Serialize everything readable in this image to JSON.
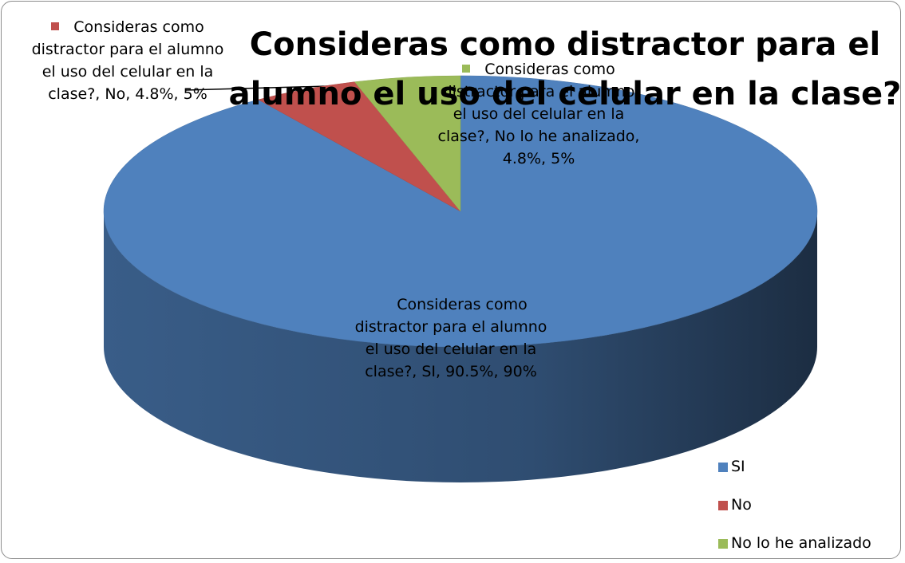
{
  "chart_data": {
    "type": "pie",
    "title": "Consideras como distractor para el alumno el uso del celular en la clase?",
    "categories": [
      "SI",
      "No",
      "No lo he analizado"
    ],
    "values": [
      90.5,
      4.8,
      4.8
    ],
    "value_labels": [
      "Consideras como distractor para el alumno el uso del celular en la clase?, SI, 90.5%, 90%",
      "Consideras como distractor para el alumno el uso del celular en la clase?, No, 4.8%, 5%",
      "Consideras como distractor para el alumno el uso del celular en la clase?, No lo he analizado, 4.8%, 5%"
    ],
    "colors": [
      "#4f81bd",
      "#c0504d",
      "#9bbb59"
    ],
    "legend": "right"
  }
}
